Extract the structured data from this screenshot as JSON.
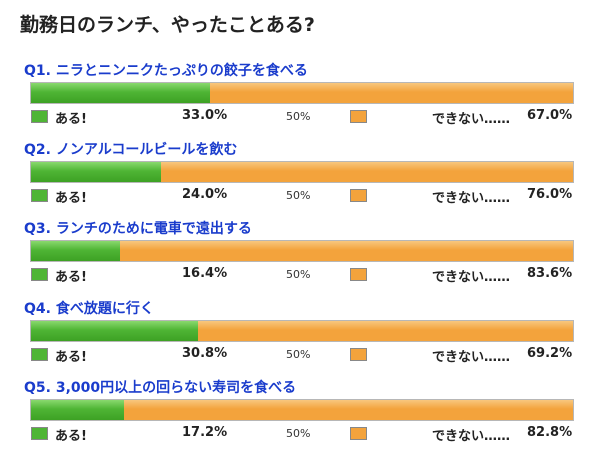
{
  "title": "勤務日のランチ、やったことある?",
  "chart_data": {
    "type": "bar",
    "orientation": "horizontal-stacked-100",
    "mid_label": "50%",
    "series_labels": [
      "ある!",
      "できない……"
    ],
    "colors": {
      "yes": "#4fb535",
      "no": "#f3a33c"
    },
    "questions": [
      {
        "label": "Q1. ニラとニンニクたっぷりの餃子を食べる",
        "yes": 33.0,
        "no": 67.0,
        "yes_text": "33.0%",
        "no_text": "67.0%"
      },
      {
        "label": "Q2. ノンアルコールビールを飲む",
        "yes": 24.0,
        "no": 76.0,
        "yes_text": "24.0%",
        "no_text": "76.0%"
      },
      {
        "label": "Q3. ランチのために電車で遠出する",
        "yes": 16.4,
        "no": 83.6,
        "yes_text": "16.4%",
        "no_text": "83.6%"
      },
      {
        "label": "Q4. 食べ放題に行く",
        "yes": 30.8,
        "no": 69.2,
        "yes_text": "30.8%",
        "no_text": "69.2%"
      },
      {
        "label": "Q5. 3,000円以上の回らない寿司を食べる",
        "yes": 17.2,
        "no": 82.8,
        "yes_text": "17.2%",
        "no_text": "82.8%"
      }
    ]
  }
}
